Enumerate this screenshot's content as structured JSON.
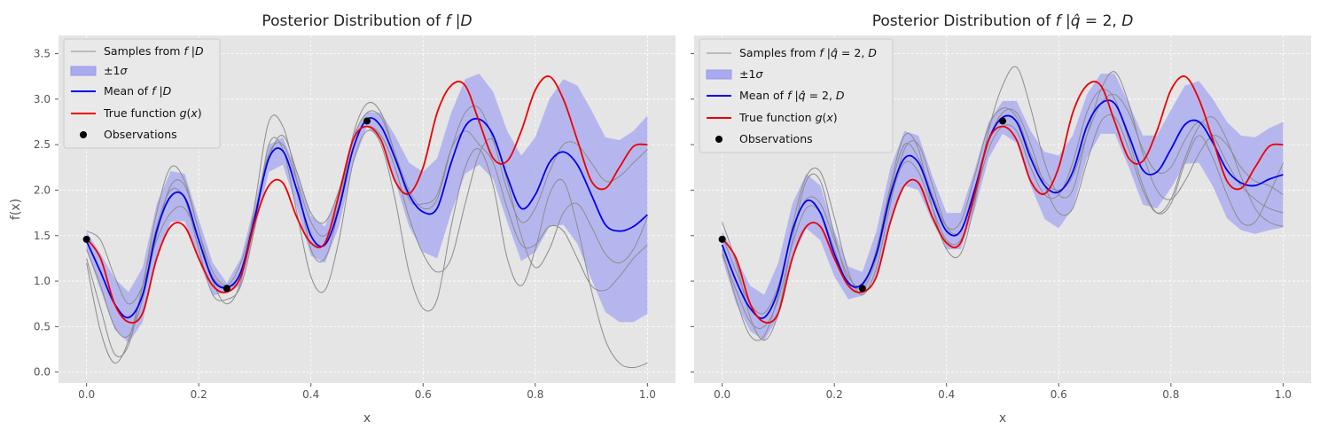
{
  "chart_data": [
    {
      "type": "line",
      "title": "Posterior Distribution of f|D",
      "xlabel": "x",
      "ylabel": "f(x)",
      "xlim": [
        -0.05,
        1.05
      ],
      "ylim": [
        -0.12,
        3.7
      ],
      "xticks": [
        "0.0",
        "0.2",
        "0.4",
        "0.6",
        "0.8",
        "1.0"
      ],
      "yticks": [
        "0.0",
        "0.5",
        "1.0",
        "1.5",
        "2.0",
        "2.5",
        "3.0",
        "3.5"
      ],
      "grid": true,
      "legend_position": "top-left",
      "legend": [
        "Samples from f|D",
        "±1σ",
        "Mean of f|D",
        "True function g(x)",
        "Observations"
      ],
      "x": [
        0,
        0.025,
        0.05,
        0.075,
        0.1,
        0.125,
        0.15,
        0.175,
        0.2,
        0.225,
        0.25,
        0.275,
        0.3,
        0.325,
        0.35,
        0.375,
        0.4,
        0.425,
        0.45,
        0.475,
        0.5,
        0.525,
        0.55,
        0.575,
        0.6,
        0.625,
        0.65,
        0.675,
        0.7,
        0.725,
        0.75,
        0.775,
        0.8,
        0.825,
        0.85,
        0.875,
        0.9,
        0.925,
        0.95,
        0.975,
        1.0
      ],
      "series": [
        {
          "name": "Mean of f|D",
          "values": [
            1.44,
            1.1,
            0.75,
            0.6,
            0.85,
            1.55,
            1.93,
            1.92,
            1.45,
            1.02,
            0.93,
            1.1,
            1.7,
            2.35,
            2.43,
            2.0,
            1.5,
            1.4,
            1.8,
            2.45,
            2.78,
            2.7,
            2.35,
            1.95,
            1.76,
            1.8,
            2.3,
            2.7,
            2.78,
            2.6,
            2.15,
            1.8,
            1.95,
            2.3,
            2.42,
            2.28,
            1.95,
            1.62,
            1.55,
            1.6,
            1.73
          ]
        },
        {
          "name": "+1σ",
          "values": [
            1.54,
            1.3,
            1.03,
            0.88,
            1.15,
            1.85,
            2.21,
            2.18,
            1.68,
            1.2,
            0.98,
            1.25,
            1.85,
            2.5,
            2.58,
            2.2,
            1.72,
            1.6,
            2.0,
            2.62,
            2.86,
            2.85,
            2.6,
            2.3,
            2.2,
            2.35,
            2.85,
            3.22,
            3.28,
            3.08,
            2.65,
            2.38,
            2.58,
            3.0,
            3.22,
            3.15,
            2.88,
            2.58,
            2.55,
            2.65,
            2.82
          ]
        },
        {
          "name": "-1σ",
          "values": [
            1.34,
            0.9,
            0.47,
            0.32,
            0.55,
            1.25,
            1.65,
            1.66,
            1.22,
            0.84,
            0.88,
            0.95,
            1.55,
            2.2,
            2.28,
            1.8,
            1.28,
            1.2,
            1.6,
            2.28,
            2.7,
            2.55,
            2.1,
            1.6,
            1.32,
            1.25,
            1.75,
            2.18,
            2.28,
            2.12,
            1.65,
            1.22,
            1.32,
            1.6,
            1.62,
            1.41,
            1.02,
            0.66,
            0.55,
            0.55,
            0.64
          ]
        },
        {
          "name": "True function g(x)",
          "values": [
            1.47,
            1.25,
            0.75,
            0.55,
            0.65,
            1.25,
            1.6,
            1.6,
            1.25,
            0.95,
            0.88,
            1.05,
            1.65,
            2.05,
            2.08,
            1.7,
            1.42,
            1.42,
            1.95,
            2.55,
            2.7,
            2.55,
            2.1,
            1.96,
            2.25,
            2.85,
            3.15,
            3.15,
            2.75,
            2.35,
            2.32,
            2.65,
            3.1,
            3.25,
            3.0,
            2.55,
            2.1,
            2.02,
            2.25,
            2.48,
            2.5
          ]
        },
        {
          "name": "",
          "values": [
            1.25,
            0.7,
            0.2,
            0.3,
            0.95,
            1.75,
            2.25,
            2.1,
            1.55,
            1.0,
            0.75,
            1.0,
            1.85,
            2.75,
            2.7,
            2.1,
            1.35,
            1.25,
            1.8,
            2.6,
            2.95,
            2.85,
            2.4,
            1.9,
            1.85,
            1.95,
            2.45,
            2.65,
            2.5,
            2.3,
            1.8,
            1.4,
            1.4,
            1.6,
            1.55,
            1.25,
            0.95,
            0.9,
            1.05,
            1.25,
            1.4
          ]
        },
        {
          "name": "",
          "values": [
            1.55,
            1.45,
            1.05,
            0.75,
            0.95,
            1.45,
            1.75,
            1.8,
            1.45,
            1.05,
            0.95,
            1.2,
            1.75,
            2.4,
            2.5,
            2.1,
            1.65,
            1.5,
            1.85,
            2.55,
            2.85,
            2.8,
            2.4,
            2.0,
            1.8,
            1.9,
            2.45,
            2.85,
            2.9,
            2.55,
            2.0,
            1.65,
            1.8,
            2.2,
            2.5,
            2.5,
            2.3,
            2.1,
            2.15,
            2.3,
            2.45
          ]
        },
        {
          "name": "",
          "values": [
            1.2,
            0.45,
            0.1,
            0.35,
            0.95,
            1.6,
            2.0,
            1.9,
            1.35,
            0.85,
            0.8,
            0.95,
            1.6,
            2.5,
            2.45,
            1.75,
            1.05,
            0.9,
            1.45,
            2.3,
            2.65,
            2.5,
            1.9,
            1.1,
            0.7,
            0.8,
            1.6,
            2.25,
            2.45,
            2.05,
            1.25,
            0.95,
            1.35,
            1.95,
            2.1,
            1.6,
            0.9,
            0.35,
            0.1,
            0.05,
            0.1
          ]
        },
        {
          "name": "",
          "values": [
            1.35,
            0.95,
            0.5,
            0.4,
            0.8,
            1.5,
            2.05,
            2.05,
            1.55,
            1.1,
            0.95,
            1.05,
            1.7,
            2.35,
            2.6,
            2.2,
            1.75,
            1.65,
            2.0,
            2.55,
            2.7,
            2.6,
            2.25,
            1.7,
            1.3,
            1.1,
            1.25,
            1.85,
            2.4,
            2.55,
            2.1,
            1.5,
            1.15,
            1.35,
            1.75,
            1.85,
            1.6,
            1.3,
            1.2,
            1.35,
            1.7
          ]
        }
      ],
      "observations": {
        "x": [
          0.0,
          0.25,
          0.5
        ],
        "y": [
          1.46,
          0.92,
          2.76
        ]
      },
      "colors": {
        "mean": "#0000ee",
        "true": "#ee0000",
        "band": "#aaaaf0",
        "samples": "#8c8c8c",
        "observations": "#000000",
        "background": "#e5e5e5"
      }
    },
    {
      "type": "line",
      "title": "Posterior Distribution of f|q̂=2,D",
      "xlabel": "x",
      "ylabel": "",
      "xlim": [
        -0.05,
        1.05
      ],
      "ylim": [
        -0.12,
        3.7
      ],
      "xticks": [
        "0.0",
        "0.2",
        "0.4",
        "0.6",
        "0.8",
        "1.0"
      ],
      "yticks": [],
      "grid": true,
      "legend_position": "top-left",
      "legend": [
        "Samples from f|q̂=2,D",
        "±1σ",
        "Mean of f|q̂=2,D",
        "True function g(x)",
        "Observations"
      ],
      "x": [
        0,
        0.025,
        0.05,
        0.075,
        0.1,
        0.125,
        0.15,
        0.175,
        0.2,
        0.225,
        0.25,
        0.275,
        0.3,
        0.325,
        0.35,
        0.375,
        0.4,
        0.425,
        0.45,
        0.475,
        0.5,
        0.525,
        0.55,
        0.575,
        0.6,
        0.625,
        0.65,
        0.675,
        0.7,
        0.725,
        0.75,
        0.775,
        0.8,
        0.825,
        0.85,
        0.875,
        0.9,
        0.925,
        0.95,
        0.975,
        1.0
      ],
      "series": [
        {
          "name": "Mean of f|q̂=2,D",
          "values": [
            1.4,
            1.0,
            0.7,
            0.6,
            0.9,
            1.55,
            1.88,
            1.75,
            1.3,
            0.98,
            0.97,
            1.3,
            1.95,
            2.35,
            2.3,
            1.9,
            1.55,
            1.55,
            2.0,
            2.55,
            2.8,
            2.75,
            2.35,
            2.05,
            1.98,
            2.2,
            2.7,
            2.95,
            2.95,
            2.6,
            2.22,
            2.2,
            2.45,
            2.72,
            2.75,
            2.52,
            2.22,
            2.08,
            2.05,
            2.12,
            2.17
          ]
        },
        {
          "name": "+1σ",
          "values": [
            1.55,
            1.25,
            0.95,
            0.85,
            1.2,
            1.85,
            2.18,
            2.05,
            1.55,
            1.16,
            1.1,
            1.55,
            2.25,
            2.65,
            2.6,
            2.15,
            1.75,
            1.75,
            2.22,
            2.75,
            2.98,
            2.98,
            2.65,
            2.42,
            2.38,
            2.6,
            3.05,
            3.28,
            3.28,
            2.95,
            2.6,
            2.6,
            2.88,
            3.15,
            3.2,
            3.0,
            2.75,
            2.6,
            2.58,
            2.68,
            2.75
          ]
        },
        {
          "name": "-1σ",
          "values": [
            1.25,
            0.75,
            0.45,
            0.35,
            0.6,
            1.25,
            1.58,
            1.45,
            1.05,
            0.8,
            0.84,
            1.05,
            1.65,
            2.05,
            2.0,
            1.65,
            1.35,
            1.35,
            1.78,
            2.35,
            2.62,
            2.52,
            2.05,
            1.68,
            1.58,
            1.8,
            2.35,
            2.62,
            2.62,
            2.25,
            1.84,
            1.8,
            2.02,
            2.29,
            2.3,
            2.04,
            1.69,
            1.56,
            1.52,
            1.56,
            1.59
          ]
        },
        {
          "name": "True function g(x)",
          "values": [
            1.47,
            1.25,
            0.75,
            0.55,
            0.65,
            1.25,
            1.6,
            1.6,
            1.25,
            0.95,
            0.88,
            1.05,
            1.65,
            2.05,
            2.08,
            1.7,
            1.42,
            1.42,
            1.95,
            2.55,
            2.7,
            2.55,
            2.1,
            1.96,
            2.25,
            2.85,
            3.15,
            3.15,
            2.75,
            2.35,
            2.32,
            2.65,
            3.1,
            3.25,
            3.0,
            2.55,
            2.1,
            2.02,
            2.25,
            2.48,
            2.5
          ]
        },
        {
          "name": "",
          "values": [
            1.65,
            1.2,
            0.6,
            0.35,
            0.65,
            1.45,
            2.1,
            2.1,
            1.5,
            1.0,
            0.95,
            1.35,
            2.05,
            2.6,
            2.45,
            1.8,
            1.35,
            1.3,
            1.85,
            2.65,
            3.15,
            3.35,
            2.9,
            2.3,
            1.95,
            2.0,
            2.6,
            3.1,
            3.3,
            2.95,
            2.4,
            2.0,
            1.9,
            2.1,
            2.4,
            2.6,
            2.5,
            2.25,
            2.1,
            2.05,
            1.95
          ]
        },
        {
          "name": "",
          "values": [
            1.35,
            0.8,
            0.4,
            0.4,
            0.85,
            1.6,
            2.15,
            2.2,
            1.7,
            1.1,
            0.85,
            1.15,
            1.85,
            2.45,
            2.5,
            2.05,
            1.6,
            1.55,
            2.0,
            2.55,
            2.85,
            2.85,
            2.5,
            2.05,
            1.75,
            1.8,
            2.3,
            2.75,
            2.8,
            2.45,
            2.0,
            1.75,
            1.9,
            2.35,
            2.7,
            2.8,
            2.55,
            2.15,
            1.8,
            1.65,
            1.6
          ]
        },
        {
          "name": "",
          "values": [
            1.5,
            1.1,
            0.75,
            0.65,
            0.95,
            1.55,
            1.9,
            1.85,
            1.45,
            1.05,
            0.95,
            1.3,
            2.0,
            2.5,
            2.35,
            1.95,
            1.6,
            1.65,
            2.15,
            2.7,
            2.9,
            2.8,
            2.4,
            2.1,
            2.0,
            2.15,
            2.6,
            2.95,
            3.05,
            2.85,
            2.45,
            2.2,
            2.25,
            2.55,
            2.75,
            2.6,
            2.3,
            2.05,
            1.9,
            1.8,
            1.75
          ]
        },
        {
          "name": "",
          "values": [
            1.3,
            0.9,
            0.55,
            0.5,
            0.8,
            1.4,
            1.8,
            1.75,
            1.35,
            0.95,
            0.9,
            1.25,
            1.9,
            2.3,
            2.2,
            1.8,
            1.45,
            1.45,
            1.9,
            2.45,
            2.7,
            2.65,
            2.25,
            1.95,
            1.95,
            2.3,
            2.85,
            3.1,
            3.0,
            2.55,
            2.05,
            1.75,
            1.85,
            2.3,
            2.6,
            2.35,
            1.95,
            1.65,
            1.65,
            1.95,
            2.3
          ]
        }
      ],
      "observations": {
        "x": [
          0.0,
          0.25,
          0.5
        ],
        "y": [
          1.46,
          0.92,
          2.76
        ]
      },
      "colors": {
        "mean": "#0000ee",
        "true": "#ee0000",
        "band": "#aaaaf0",
        "samples": "#8c8c8c",
        "observations": "#000000",
        "background": "#e5e5e5"
      }
    }
  ]
}
